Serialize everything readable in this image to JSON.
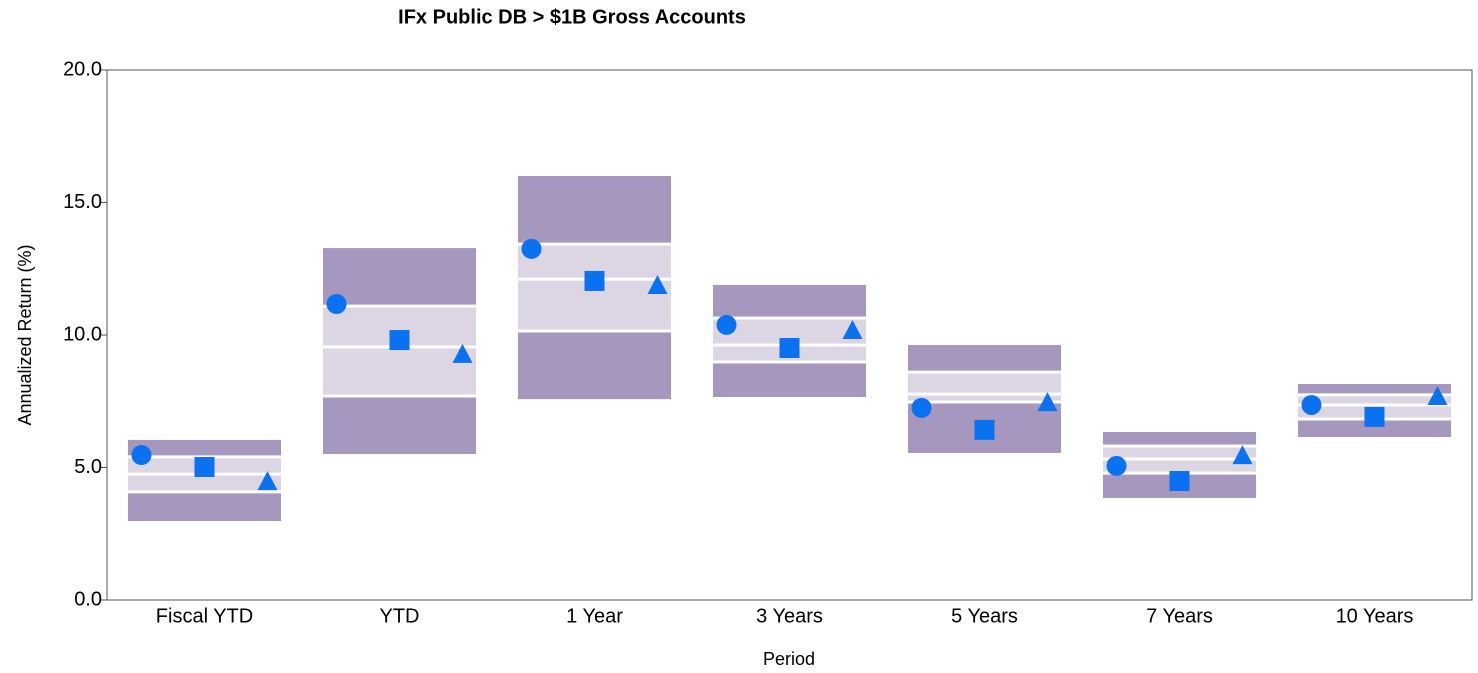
{
  "chart_data": {
    "type": "floating_box",
    "title": "IFx Public DB > $1B Gross Accounts",
    "x_label": "Period",
    "y_label": "Annualized Return (%)",
    "categories": [
      "Fiscal YTD",
      "YTD",
      "1 Year",
      "3 Years",
      "5 Years",
      "7 Years",
      "10 Years"
    ],
    "p95": [
      6.04,
      13.28,
      16.0,
      11.89,
      9.62,
      6.34,
      8.15
    ],
    "p75": [
      5.4,
      11.09,
      13.43,
      10.64,
      8.6,
      5.81,
      7.74
    ],
    "p50": [
      4.75,
      9.55,
      12.11,
      9.62,
      7.77,
      5.32,
      7.36
    ],
    "p25": [
      4.08,
      7.7,
      10.15,
      8.98,
      7.47,
      4.79,
      6.83
    ],
    "p5": [
      2.98,
      5.51,
      7.58,
      7.66,
      5.55,
      3.85,
      6.15
    ],
    "outer_color": "#a597be",
    "inner_color": "#dcd6e4",
    "series": [
      {
        "marker": "circle",
        "color": "#0a72f0",
        "values": [
          5.47,
          11.17,
          13.25,
          10.38,
          7.25,
          5.06,
          7.36
        ]
      },
      {
        "marker": "square",
        "color": "#0a72f0",
        "values": [
          5.02,
          9.81,
          12.04,
          9.51,
          6.42,
          4.49,
          6.91
        ]
      },
      {
        "marker": "triangle",
        "color": "#0a72f0",
        "values": [
          4.45,
          9.25,
          11.85,
          10.15,
          7.43,
          5.43,
          7.66
        ]
      }
    ],
    "ylim": [
      0,
      20
    ],
    "yticks": [
      {
        "value": 0,
        "label": "0.0"
      },
      {
        "value": 5,
        "label": "5.0"
      },
      {
        "value": 10,
        "label": "10.0"
      },
      {
        "value": 15,
        "label": "15.0"
      },
      {
        "value": 20,
        "label": "20.0"
      }
    ]
  }
}
